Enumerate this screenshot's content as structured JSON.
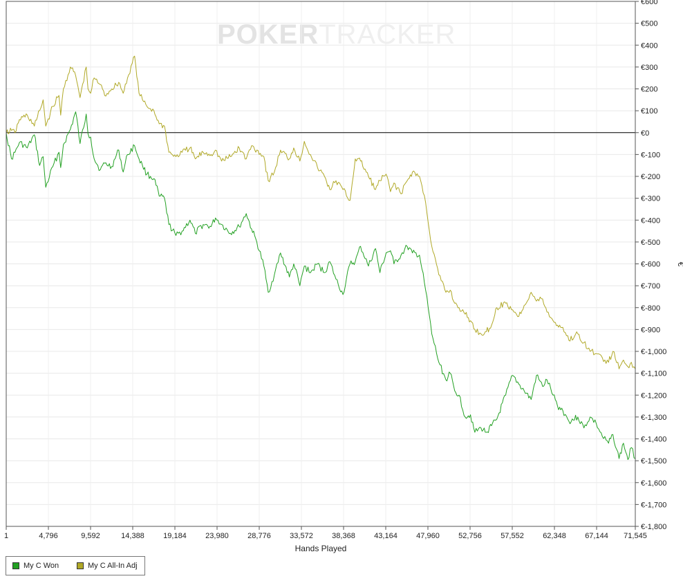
{
  "watermark": {
    "part1": "POKER",
    "part2": "TRACKER"
  },
  "chart_data": {
    "type": "line",
    "xlabel": "Hands Played",
    "ylabel": "€",
    "xlim": [
      1,
      71545
    ],
    "ylim": [
      -1800,
      600
    ],
    "x_ticks": [
      1,
      4796,
      9592,
      14388,
      19184,
      23980,
      28776,
      33572,
      38368,
      43164,
      47960,
      52756,
      57552,
      62348,
      67144,
      71545
    ],
    "x_tick_labels": [
      "1",
      "4,796",
      "9,592",
      "14,388",
      "19,184",
      "23,980",
      "28,776",
      "33,572",
      "38,368",
      "43,164",
      "47,960",
      "52,756",
      "57,552",
      "62,348",
      "67,144",
      "71,545"
    ],
    "y_ticks": [
      600,
      500,
      400,
      300,
      200,
      100,
      0,
      -100,
      -200,
      -300,
      -400,
      -500,
      -600,
      -700,
      -800,
      -900,
      -1000,
      -1100,
      -1200,
      -1300,
      -1400,
      -1500,
      -1600,
      -1700,
      -1800
    ],
    "y_tick_labels": [
      "€600",
      "€500",
      "€400",
      "€300",
      "€200",
      "€100",
      "€0",
      "€-100",
      "€-200",
      "€-300",
      "€-400",
      "€-500",
      "€-600",
      "€-700",
      "€-800",
      "€-900",
      "€-1,000",
      "€-1,100",
      "€-1,200",
      "€-1,300",
      "€-1,400",
      "€-1,500",
      "€-1,600",
      "€-1,700",
      "€-1,800"
    ],
    "grid": true,
    "legend_position": "bottom-left",
    "series": [
      {
        "name": "My C Won",
        "color": "#22a022",
        "x": [
          1,
          600,
          1000,
          1500,
          2400,
          3200,
          3800,
          4200,
          4500,
          5300,
          6000,
          6200,
          6500,
          7300,
          7900,
          8400,
          9100,
          9300,
          9600,
          10000,
          10700,
          11200,
          12000,
          12800,
          13300,
          13800,
          14600,
          15100,
          15500,
          16000,
          16800,
          17400,
          18000,
          18500,
          19300,
          20000,
          20900,
          21500,
          22400,
          23300,
          23800,
          24500,
          25500,
          26500,
          27300,
          27900,
          28500,
          29300,
          29800,
          30500,
          31200,
          32200,
          32700,
          33400,
          33900,
          34600,
          35400,
          36200,
          36800,
          37500,
          38300,
          39100,
          39700,
          40300,
          41200,
          42000,
          42500,
          43200,
          43700,
          44100,
          44900,
          45600,
          46200,
          47000,
          47700,
          48400,
          49200,
          50000,
          50500,
          51000,
          51500,
          52200,
          52800,
          53300,
          54000,
          54600,
          55200,
          55800,
          56800,
          57600,
          58300,
          58900,
          59700,
          60300,
          61000,
          61500,
          62200,
          62700,
          63300,
          64000,
          65000,
          65700,
          66400,
          67100,
          67800,
          68500,
          69000,
          69700,
          70200,
          70700,
          71100,
          71545
        ],
        "y": [
          0,
          -120,
          -90,
          -45,
          -70,
          -10,
          -150,
          -110,
          -250,
          -155,
          -90,
          -160,
          -55,
          15,
          95,
          -50,
          85,
          -5,
          -20,
          -120,
          -170,
          -140,
          -155,
          -80,
          -180,
          -100,
          -60,
          -120,
          -150,
          -190,
          -210,
          -290,
          -300,
          -420,
          -470,
          -450,
          -400,
          -460,
          -420,
          -430,
          -390,
          -420,
          -460,
          -430,
          -370,
          -440,
          -500,
          -610,
          -730,
          -650,
          -550,
          -660,
          -600,
          -700,
          -610,
          -640,
          -600,
          -640,
          -590,
          -670,
          -740,
          -600,
          -590,
          -520,
          -610,
          -530,
          -640,
          -550,
          -540,
          -600,
          -560,
          -520,
          -550,
          -560,
          -720,
          -920,
          -1050,
          -1130,
          -1100,
          -1180,
          -1200,
          -1300,
          -1290,
          -1370,
          -1350,
          -1370,
          -1340,
          -1310,
          -1200,
          -1110,
          -1150,
          -1180,
          -1220,
          -1110,
          -1160,
          -1130,
          -1200,
          -1250,
          -1270,
          -1320,
          -1300,
          -1350,
          -1300,
          -1330,
          -1390,
          -1420,
          -1380,
          -1490,
          -1420,
          -1495,
          -1440,
          -1490
        ]
      },
      {
        "name": "My C All-In Adj",
        "color": "#b0a826",
        "x": [
          1,
          600,
          1000,
          1500,
          2400,
          3200,
          3800,
          4200,
          4500,
          5300,
          6000,
          6200,
          6500,
          7300,
          7900,
          8400,
          9100,
          9300,
          9600,
          10000,
          10700,
          11200,
          12000,
          12800,
          13300,
          13800,
          14600,
          15100,
          15500,
          16000,
          16800,
          17400,
          18000,
          18500,
          19300,
          20000,
          20900,
          21500,
          22400,
          23300,
          23800,
          24500,
          25500,
          26500,
          27300,
          27900,
          28500,
          29300,
          29800,
          30500,
          31200,
          32200,
          32700,
          33400,
          33900,
          34600,
          35400,
          36200,
          36800,
          37500,
          38300,
          39100,
          39700,
          40300,
          41200,
          42000,
          42500,
          43200,
          43700,
          44100,
          44900,
          45600,
          46200,
          47000,
          47700,
          48400,
          49200,
          50000,
          50500,
          51000,
          51500,
          52200,
          52800,
          53300,
          54000,
          54600,
          55200,
          55800,
          56800,
          57600,
          58300,
          58900,
          59700,
          60300,
          61000,
          61500,
          62200,
          62700,
          63300,
          64000,
          65000,
          65700,
          66400,
          67100,
          67800,
          68500,
          69000,
          69700,
          70200,
          70700,
          71100,
          71545
        ],
        "y": [
          0,
          10,
          0,
          60,
          80,
          30,
          100,
          150,
          30,
          120,
          170,
          80,
          200,
          300,
          260,
          160,
          300,
          200,
          180,
          250,
          220,
          170,
          200,
          230,
          180,
          250,
          350,
          180,
          150,
          120,
          100,
          40,
          30,
          -90,
          -110,
          -90,
          -70,
          -120,
          -90,
          -100,
          -80,
          -130,
          -110,
          -70,
          -120,
          -60,
          -80,
          -110,
          -220,
          -180,
          -80,
          -120,
          -70,
          -130,
          -40,
          -100,
          -160,
          -200,
          -260,
          -220,
          -260,
          -310,
          -120,
          -130,
          -200,
          -260,
          -220,
          -190,
          -270,
          -230,
          -280,
          -220,
          -180,
          -200,
          -320,
          -520,
          -650,
          -730,
          -720,
          -780,
          -800,
          -830,
          -860,
          -900,
          -920,
          -910,
          -880,
          -800,
          -780,
          -810,
          -840,
          -790,
          -730,
          -770,
          -760,
          -820,
          -860,
          -880,
          -890,
          -950,
          -920,
          -960,
          -1000,
          -1010,
          -1030,
          -1050,
          -1000,
          -1080,
          -1040,
          -1070,
          -1050,
          -1080
        ]
      }
    ]
  }
}
